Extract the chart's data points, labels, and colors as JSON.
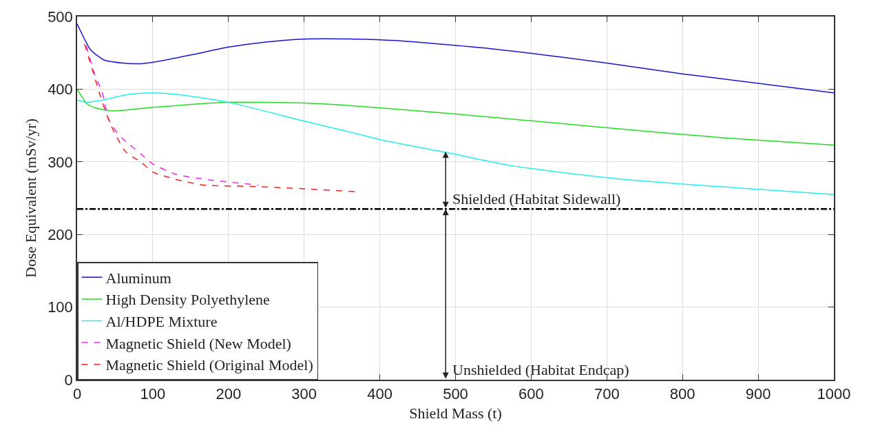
{
  "chart_data": {
    "type": "line",
    "xlabel": "Shield Mass (t)",
    "ylabel": "Dose Equivalent (mSv/yr)",
    "xlim": [
      0,
      1000
    ],
    "xticks": [
      0,
      100,
      200,
      300,
      400,
      500,
      600,
      700,
      800,
      900,
      1000
    ],
    "ylim": [
      0,
      500
    ],
    "yticks": [
      0,
      100,
      200,
      300,
      400,
      500
    ],
    "grid": true,
    "legend": "bottom left",
    "marker": "none",
    "series": [
      {
        "name": "Aluminum",
        "color": "#1414d2",
        "line_style": "solid",
        "x": [
          0,
          18,
          36,
          60,
          80,
          100,
          150,
          200,
          250,
          300,
          365,
          420,
          545,
          700,
          800,
          1000
        ],
        "values": [
          490,
          454,
          440,
          436,
          435,
          437,
          447,
          458,
          465,
          469,
          469,
          467,
          456,
          436,
          421,
          395
        ]
      },
      {
        "name": "High Density Polyethylene",
        "color": "#22dd22",
        "line_style": "solid",
        "x": [
          0,
          13,
          25,
          46,
          100,
          200,
          300,
          353,
          403,
          499,
          699,
          854,
          1000
        ],
        "values": [
          400,
          380,
          374,
          370,
          375,
          382,
          381,
          378,
          374,
          366,
          347,
          333,
          323
        ]
      },
      {
        "name": "Al/HDPE Mixture",
        "color": "#22eeee",
        "line_style": "solid",
        "x": [
          0,
          13,
          33,
          69,
          100,
          130,
          200,
          300,
          353,
          403,
          487,
          578,
          720,
          1000
        ],
        "values": [
          385,
          382,
          385,
          393,
          395,
          393,
          382,
          356,
          343,
          330,
          313,
          294,
          276,
          255
        ]
      },
      {
        "name": "Magnetic Shield (New Model)",
        "color": "#ee22ee",
        "line_style": "dashed",
        "x": [
          12,
          24,
          33,
          42,
          55,
          69,
          85,
          100,
          130,
          176,
          239
        ],
        "values": [
          460,
          418,
          396,
          358,
          337,
          324,
          310,
          297,
          283,
          275,
          268
        ]
      },
      {
        "name": "Magnetic Shield (Original Model)",
        "color": "#ee2222",
        "line_style": "dashed",
        "x": [
          10,
          30,
          39,
          48,
          64,
          85,
          100,
          130,
          167,
          236,
          297,
          368
        ],
        "values": [
          462,
          393,
          365,
          343,
          314,
          299,
          286,
          276,
          268,
          266,
          263,
          259
        ]
      }
    ],
    "ref_lines": [
      {
        "axis": "y",
        "value": 235,
        "color": "#000000",
        "line_style": "dashdot"
      }
    ],
    "annotations": [
      {
        "text": "Shielded (Habitat Sidewall)",
        "x": 487,
        "y": 314
      },
      {
        "text": "Unshielded (Habitat Endcap)",
        "x": 487,
        "y": 235
      }
    ]
  }
}
